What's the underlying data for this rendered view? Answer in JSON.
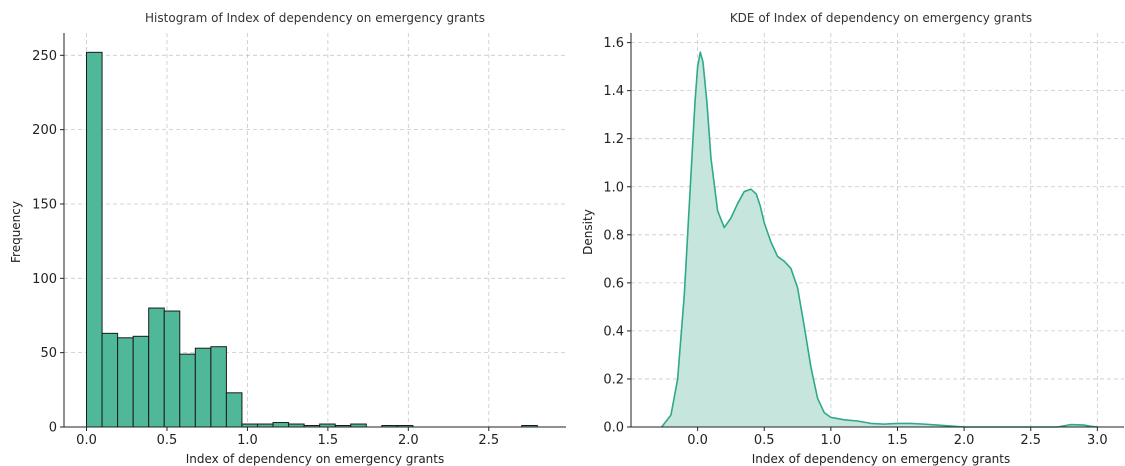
{
  "chart_data": [
    {
      "type": "bar",
      "title": "Histogram of Index of dependency on emergency grants",
      "xlabel": "Index of dependency on emergency grants",
      "ylabel": "Frequency",
      "xlim": [
        -0.14,
        2.98
      ],
      "ylim": [
        0,
        265
      ],
      "xticks": [
        0.0,
        0.5,
        1.0,
        1.5,
        2.0,
        2.5
      ],
      "xtick_labels": [
        "0.0",
        "0.5",
        "1.0",
        "1.5",
        "2.0",
        "2.5"
      ],
      "yticks": [
        0,
        50,
        100,
        150,
        200,
        250
      ],
      "ytick_labels": [
        "0",
        "50",
        "100",
        "150",
        "200",
        "250"
      ],
      "grid": true,
      "bin_width": 0.0966,
      "bins_start": [
        0.0,
        0.0966,
        0.1932,
        0.2898,
        0.3864,
        0.483,
        0.5796,
        0.6762,
        0.7728,
        0.8694,
        0.966,
        1.0626,
        1.1592,
        1.2558,
        1.3524,
        1.449,
        1.5456,
        1.6422,
        1.7388,
        1.8354,
        1.932,
        2.0286,
        2.1252,
        2.2218,
        2.3184,
        2.415,
        2.5116,
        2.6082,
        2.7048
      ],
      "values": [
        252,
        63,
        60,
        61,
        80,
        78,
        49,
        53,
        54,
        23,
        2,
        2,
        3,
        2,
        1,
        2,
        1,
        2,
        0,
        1,
        1,
        0,
        0,
        0,
        0,
        0,
        0,
        0,
        1
      ],
      "color": "#4fb899",
      "edge_color": "#1a1a1a"
    },
    {
      "type": "area",
      "title": "KDE of Index of dependency on emergency grants",
      "xlabel": "Index of dependency on emergency grants",
      "ylabel": "Density",
      "xlim": [
        -0.5,
        3.2
      ],
      "ylim": [
        0,
        1.64
      ],
      "xticks": [
        0.0,
        0.5,
        1.0,
        1.5,
        2.0,
        2.5,
        3.0
      ],
      "xtick_labels": [
        "0.0",
        "0.5",
        "1.0",
        "1.5",
        "2.0",
        "2.5",
        "3.0"
      ],
      "yticks": [
        0.0,
        0.2,
        0.4,
        0.6,
        0.8,
        1.0,
        1.2,
        1.4,
        1.6
      ],
      "ytick_labels": [
        "0.0",
        "0.2",
        "0.4",
        "0.6",
        "0.8",
        "1.0",
        "1.2",
        "1.4",
        "1.6"
      ],
      "grid": true,
      "x": [
        -0.27,
        -0.2,
        -0.15,
        -0.1,
        -0.05,
        -0.02,
        0.0,
        0.02,
        0.04,
        0.07,
        0.1,
        0.15,
        0.2,
        0.25,
        0.3,
        0.35,
        0.4,
        0.44,
        0.47,
        0.5,
        0.55,
        0.6,
        0.65,
        0.7,
        0.75,
        0.8,
        0.85,
        0.9,
        0.95,
        1.0,
        1.05,
        1.1,
        1.2,
        1.3,
        1.4,
        1.5,
        1.6,
        1.7,
        1.8,
        1.9,
        2.0,
        2.05,
        2.1,
        2.3,
        2.5,
        2.7,
        2.8,
        2.9,
        2.95,
        3.0
      ],
      "y": [
        0.0,
        0.05,
        0.2,
        0.55,
        1.05,
        1.35,
        1.5,
        1.56,
        1.52,
        1.35,
        1.12,
        0.9,
        0.83,
        0.87,
        0.93,
        0.98,
        0.99,
        0.97,
        0.92,
        0.85,
        0.77,
        0.71,
        0.69,
        0.66,
        0.58,
        0.42,
        0.25,
        0.12,
        0.06,
        0.04,
        0.035,
        0.03,
        0.025,
        0.015,
        0.012,
        0.015,
        0.015,
        0.012,
        0.008,
        0.004,
        0.0,
        0.0,
        0.0,
        0.0,
        0.0,
        0.0,
        0.01,
        0.008,
        0.003,
        0.0
      ],
      "line_color": "#2ea98a",
      "fill_color": "#c6e6dd"
    }
  ]
}
